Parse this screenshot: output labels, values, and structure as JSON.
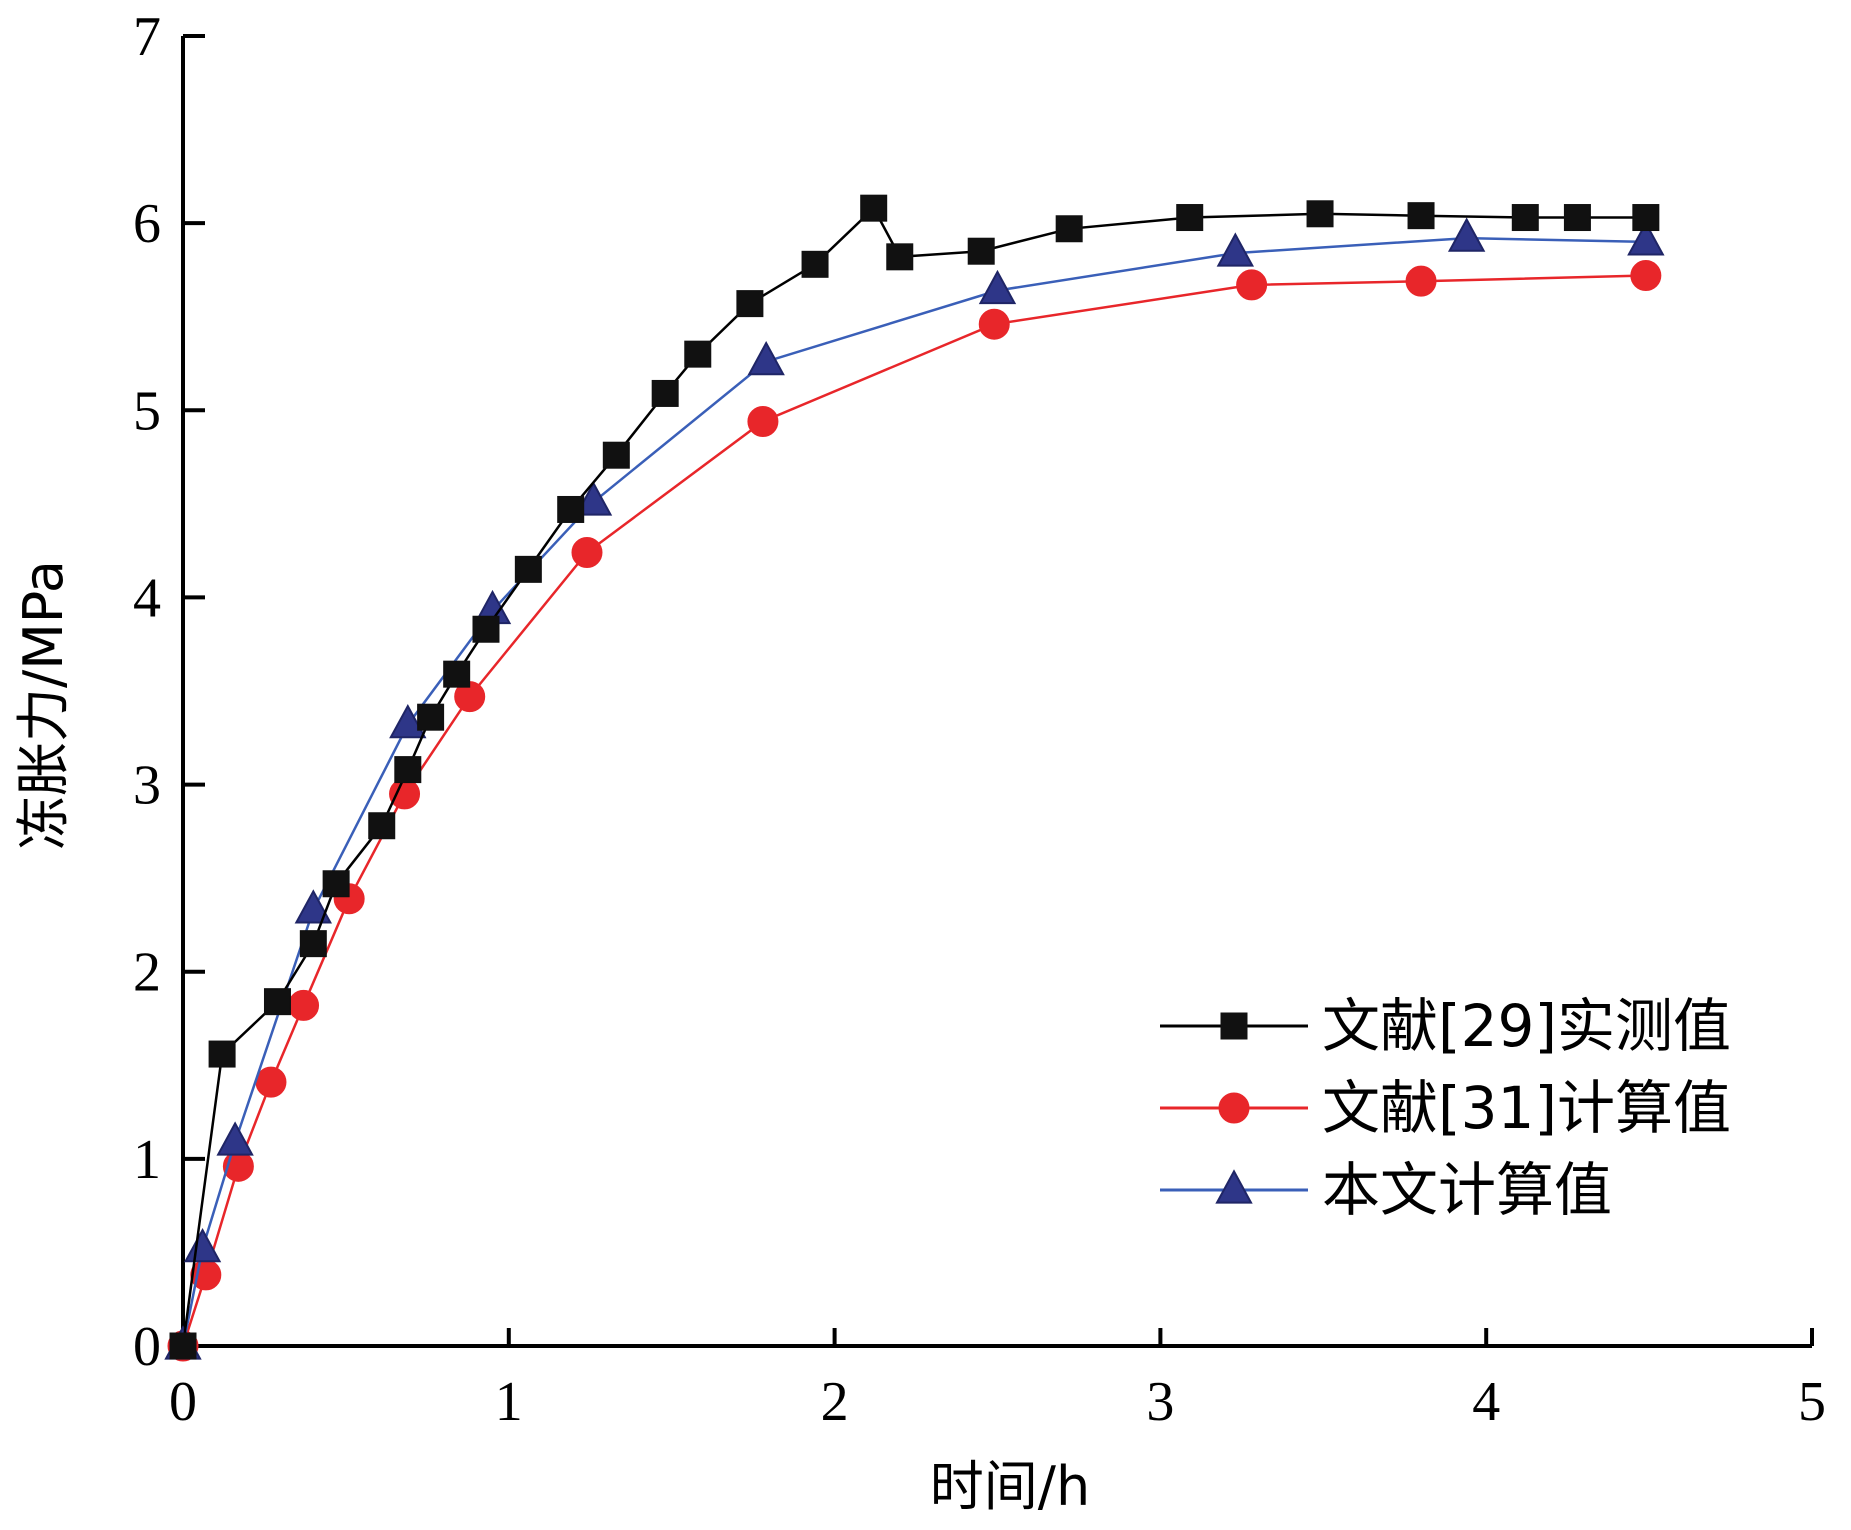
{
  "chart_data": {
    "type": "line",
    "title": "",
    "xlabel": "时间/h",
    "ylabel": "冻胀力/MPa",
    "xlim": [
      0,
      5
    ],
    "ylim": [
      0,
      7
    ],
    "x_ticks": [
      "0",
      "1",
      "2",
      "3",
      "4",
      "5"
    ],
    "y_ticks": [
      "0",
      "1",
      "2",
      "3",
      "4",
      "5",
      "6",
      "7"
    ],
    "grid": false,
    "legend_position": "bottom-right",
    "series": [
      {
        "name": "文献[29]实测值",
        "color": "#000000",
        "marker": "square",
        "x": [
          0.0,
          0.12,
          0.29,
          0.4,
          0.47,
          0.61,
          0.69,
          0.76,
          0.84,
          0.93,
          1.06,
          1.19,
          1.33,
          1.48,
          1.58,
          1.74,
          1.94,
          2.12,
          2.2,
          2.45,
          2.72,
          3.09,
          3.49,
          3.8,
          4.12,
          4.28,
          4.49
        ],
        "y": [
          0.0,
          1.56,
          1.84,
          2.15,
          2.47,
          2.78,
          3.08,
          3.36,
          3.59,
          3.83,
          4.15,
          4.47,
          4.76,
          5.09,
          5.3,
          5.57,
          5.78,
          6.08,
          5.82,
          5.85,
          5.97,
          6.03,
          6.05,
          6.04,
          6.03,
          6.03,
          6.03
        ]
      },
      {
        "name": "文献[31]计算值",
        "color": "#e8262a",
        "marker": "circle",
        "x": [
          0.0,
          0.07,
          0.17,
          0.27,
          0.37,
          0.51,
          0.68,
          0.88,
          1.24,
          1.78,
          2.49,
          3.28,
          3.8,
          4.49
        ],
        "y": [
          0.0,
          0.38,
          0.96,
          1.41,
          1.82,
          2.39,
          2.95,
          3.47,
          4.24,
          4.94,
          5.46,
          5.67,
          5.69,
          5.72
        ]
      },
      {
        "name": "本文计算值",
        "color": "#3a5fb8",
        "marker": "triangle",
        "x": [
          0.0,
          0.06,
          0.16,
          0.4,
          0.69,
          0.95,
          1.26,
          1.79,
          2.5,
          3.23,
          3.94,
          4.49
        ],
        "y": [
          0.0,
          0.52,
          1.09,
          2.33,
          3.32,
          3.93,
          4.51,
          5.26,
          5.64,
          5.84,
          5.92,
          5.9
        ]
      }
    ]
  }
}
